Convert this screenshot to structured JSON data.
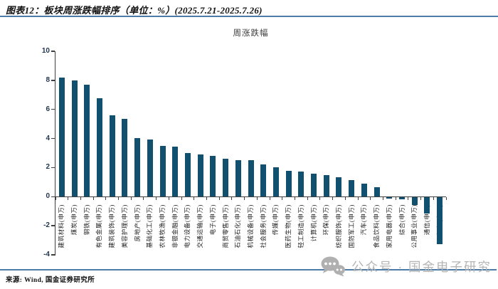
{
  "header": {
    "title": "图表12：板块周涨跌幅排序（单位：%）(2025.7.21-2025.7.26)"
  },
  "footer": {
    "source": "来源: Wind, 国金证券研究所",
    "watermark_text": "公众号 · 国金电子研究"
  },
  "colors": {
    "accent_rule": "#4d7ba7",
    "bar": "#12506f",
    "axis": "#3f3f3f",
    "ytick_text": "#1f3550",
    "watermark_gray": "#b5b5b5"
  },
  "chart_data": {
    "type": "bar",
    "title": "周涨跌幅",
    "xlabel": "",
    "ylabel": "",
    "ylim": [
      -4,
      10
    ],
    "yticks": [
      10,
      8,
      6,
      4,
      2,
      0,
      -2,
      -4
    ],
    "grid": false,
    "legend": "none",
    "bar_color": "#12506f",
    "categories": [
      "建筑材料(申万)",
      "煤炭(申万)",
      "钢铁(申万)",
      "有色金属(申万)",
      "建筑装饰(申万)",
      "美容护理(申万)",
      "房地产(申万)",
      "基础化工(申万)",
      "农林牧渔(申万)",
      "非银金融(申万)",
      "电力设备(申万)",
      "交通运输(申万)",
      "电子(申万)",
      "商贸零售(申万)",
      "石油石化(申万)",
      "机械设备(申万)",
      "社会服务(申万)",
      "传媒(申万)",
      "医药生物(申万)",
      "轻工制造(申万)",
      "计算机(申万)",
      "环保(申万)",
      "纺织服饰(申万)",
      "国防军工(申万)",
      "汽车(申万)",
      "食品饮料(申万)",
      "家用电器(申万)",
      "综合(申万)",
      "公用事业(申万)",
      "通信(申万)",
      "银行(申万)"
    ],
    "values": [
      8.2,
      8.0,
      7.7,
      6.75,
      5.6,
      5.35,
      4.05,
      3.95,
      3.5,
      3.45,
      3.0,
      2.9,
      2.8,
      2.6,
      2.5,
      2.5,
      2.2,
      2.0,
      1.8,
      1.75,
      1.6,
      1.5,
      1.35,
      1.15,
      0.9,
      0.65,
      -0.1,
      -0.15,
      -0.55,
      -1.1,
      -3.25
    ]
  }
}
